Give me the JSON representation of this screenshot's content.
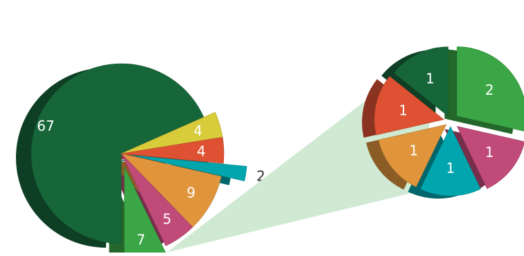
{
  "chart_data": [
    {
      "type": "pie",
      "values": [
        67,
        4,
        4,
        2,
        9,
        5,
        7
      ],
      "labels": [
        "67",
        "4",
        "4",
        "2",
        "9",
        "5",
        "7"
      ],
      "colors": [
        "#17663a",
        "#d9cc3a",
        "#de5233",
        "#00a5ad",
        "#e0953c",
        "#c04a78",
        "#3aa645"
      ],
      "exploded_slice_index": 6
    },
    {
      "type": "pie",
      "values": [
        2,
        1,
        1,
        1,
        1,
        1
      ],
      "labels": [
        "2",
        "1",
        "1",
        "1",
        "1",
        "1"
      ],
      "colors": [
        "#3aa645",
        "#c04a78",
        "#00a5ad",
        "#e0953c",
        "#de5233",
        "#17663a"
      ]
    }
  ]
}
